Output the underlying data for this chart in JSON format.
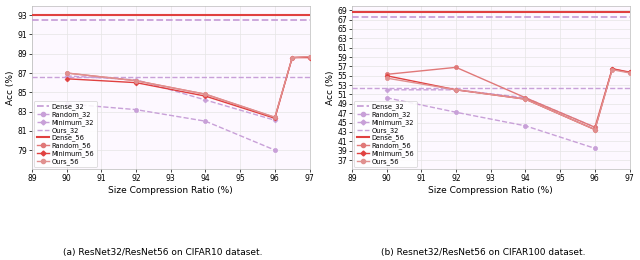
{
  "left": {
    "subplot_label": "(a) ResNet32/ResNet56 on CIFAR10 dataset.",
    "ylabel": "Acc (%)",
    "xlabel": "Size Compression Ratio (%)",
    "xlim": [
      89,
      97
    ],
    "ylim": [
      77,
      94
    ],
    "yticks": [
      79,
      81,
      83,
      85,
      87,
      89,
      91,
      93
    ],
    "xticks": [
      89,
      90,
      91,
      92,
      93,
      94,
      95,
      96,
      97
    ],
    "series": [
      {
        "name": "Dense_32",
        "x": [
          89,
          97
        ],
        "y": [
          92.5,
          92.5
        ],
        "color": "#c8a0d8",
        "ls": "--",
        "marker": null,
        "lw": 1.3,
        "ms": 0
      },
      {
        "name": "Random_32",
        "x": [
          90,
          92,
          94,
          96
        ],
        "y": [
          83.8,
          83.2,
          82.0,
          79.0
        ],
        "color": "#c8a0d8",
        "ls": "--",
        "marker": "o",
        "lw": 1.0,
        "ms": 3
      },
      {
        "name": "Minimum_32",
        "x": [
          90,
          92,
          94,
          96
        ],
        "y": [
          86.7,
          86.3,
          84.2,
          82.1
        ],
        "color": "#c8a0d8",
        "ls": "--",
        "marker": "D",
        "lw": 1.0,
        "ms": 2.5
      },
      {
        "name": "Ours_32",
        "x": [
          89,
          97
        ],
        "y": [
          86.6,
          86.6
        ],
        "color": "#c8a0d8",
        "ls": "--",
        "marker": null,
        "lw": 1.0,
        "ms": 0
      },
      {
        "name": "Dense_56",
        "x": [
          89,
          97
        ],
        "y": [
          93.05,
          93.05
        ],
        "color": "#e04040",
        "ls": "-",
        "marker": null,
        "lw": 1.5,
        "ms": 0
      },
      {
        "name": "Random_56",
        "x": [
          90,
          92,
          94,
          96,
          96.5,
          97
        ],
        "y": [
          87.0,
          86.2,
          84.8,
          82.4,
          88.6,
          88.7
        ],
        "color": "#e07878",
        "ls": "-",
        "marker": "o",
        "lw": 1.0,
        "ms": 3
      },
      {
        "name": "Minimum_56",
        "x": [
          90,
          92,
          94,
          96,
          96.5,
          97
        ],
        "y": [
          86.4,
          86.0,
          84.6,
          82.3,
          88.6,
          88.6
        ],
        "color": "#e04040",
        "ls": "-",
        "marker": "D",
        "lw": 1.0,
        "ms": 2.5
      },
      {
        "name": "Ours_56",
        "x": [
          90,
          92,
          94,
          96,
          96.5,
          97
        ],
        "y": [
          87.0,
          86.2,
          84.8,
          82.4,
          88.6,
          88.7
        ],
        "color": "#e09090",
        "ls": "-",
        "marker": "o",
        "lw": 1.0,
        "ms": 3
      }
    ]
  },
  "right": {
    "subplot_label": "(b) Resnet32/ResNet56 on CIFAR100 dataset.",
    "ylabel": "Acc (%)",
    "xlabel": "Size Compression Ratio (%)",
    "xlim": [
      89,
      97
    ],
    "ylim": [
      35,
      70
    ],
    "yticks": [
      37,
      39,
      41,
      43,
      45,
      47,
      49,
      51,
      53,
      55,
      57,
      59,
      61,
      63,
      65,
      67,
      69
    ],
    "xticks": [
      89,
      90,
      91,
      92,
      93,
      94,
      95,
      96,
      97
    ],
    "series": [
      {
        "name": "Dense_32",
        "x": [
          89,
          97
        ],
        "y": [
          67.5,
          67.5
        ],
        "color": "#c8a0d8",
        "ls": "--",
        "marker": null,
        "lw": 1.3,
        "ms": 0
      },
      {
        "name": "Random_32",
        "x": [
          90,
          92,
          94,
          96
        ],
        "y": [
          50.3,
          47.2,
          44.3,
          39.5
        ],
        "color": "#c8a0d8",
        "ls": "--",
        "marker": "o",
        "lw": 1.0,
        "ms": 3
      },
      {
        "name": "Minimum_32",
        "x": [
          90,
          92,
          94,
          96
        ],
        "y": [
          52.0,
          52.0,
          50.3,
          44.0
        ],
        "color": "#c8a0d8",
        "ls": "--",
        "marker": "D",
        "lw": 1.0,
        "ms": 2.5
      },
      {
        "name": "Ours_32",
        "x": [
          89,
          97
        ],
        "y": [
          52.3,
          52.3
        ],
        "color": "#c8a0d8",
        "ls": "--",
        "marker": null,
        "lw": 1.0,
        "ms": 0
      },
      {
        "name": "Dense_56",
        "x": [
          89,
          97
        ],
        "y": [
          68.7,
          68.7
        ],
        "color": "#e04040",
        "ls": "-",
        "marker": null,
        "lw": 1.5,
        "ms": 0
      },
      {
        "name": "Random_56",
        "x": [
          90,
          92,
          94,
          96,
          96.5,
          97
        ],
        "y": [
          55.3,
          56.8,
          50.3,
          44.0,
          56.5,
          55.8
        ],
        "color": "#e07878",
        "ls": "-",
        "marker": "o",
        "lw": 1.0,
        "ms": 3
      },
      {
        "name": "Minimum_56",
        "x": [
          90,
          92,
          94,
          96,
          96.5,
          97
        ],
        "y": [
          55.0,
          52.0,
          50.0,
          43.5,
          56.5,
          55.7
        ],
        "color": "#e04040",
        "ls": "-",
        "marker": "D",
        "lw": 1.0,
        "ms": 2.5
      },
      {
        "name": "Ours_56",
        "x": [
          90,
          92,
          94,
          96,
          96.5,
          97
        ],
        "y": [
          54.5,
          52.0,
          50.0,
          43.5,
          56.3,
          55.6
        ],
        "color": "#e09090",
        "ls": "-",
        "marker": "o",
        "lw": 1.0,
        "ms": 3
      }
    ]
  },
  "bg_color": "#fdf8ff",
  "grid_color": "#e5e5e5",
  "spine_color": "#bbbbbb",
  "label_fontsize": 6.5,
  "tick_fontsize": 5.5,
  "legend_fontsize": 4.8,
  "subplot_label_fontsize": 6.5
}
